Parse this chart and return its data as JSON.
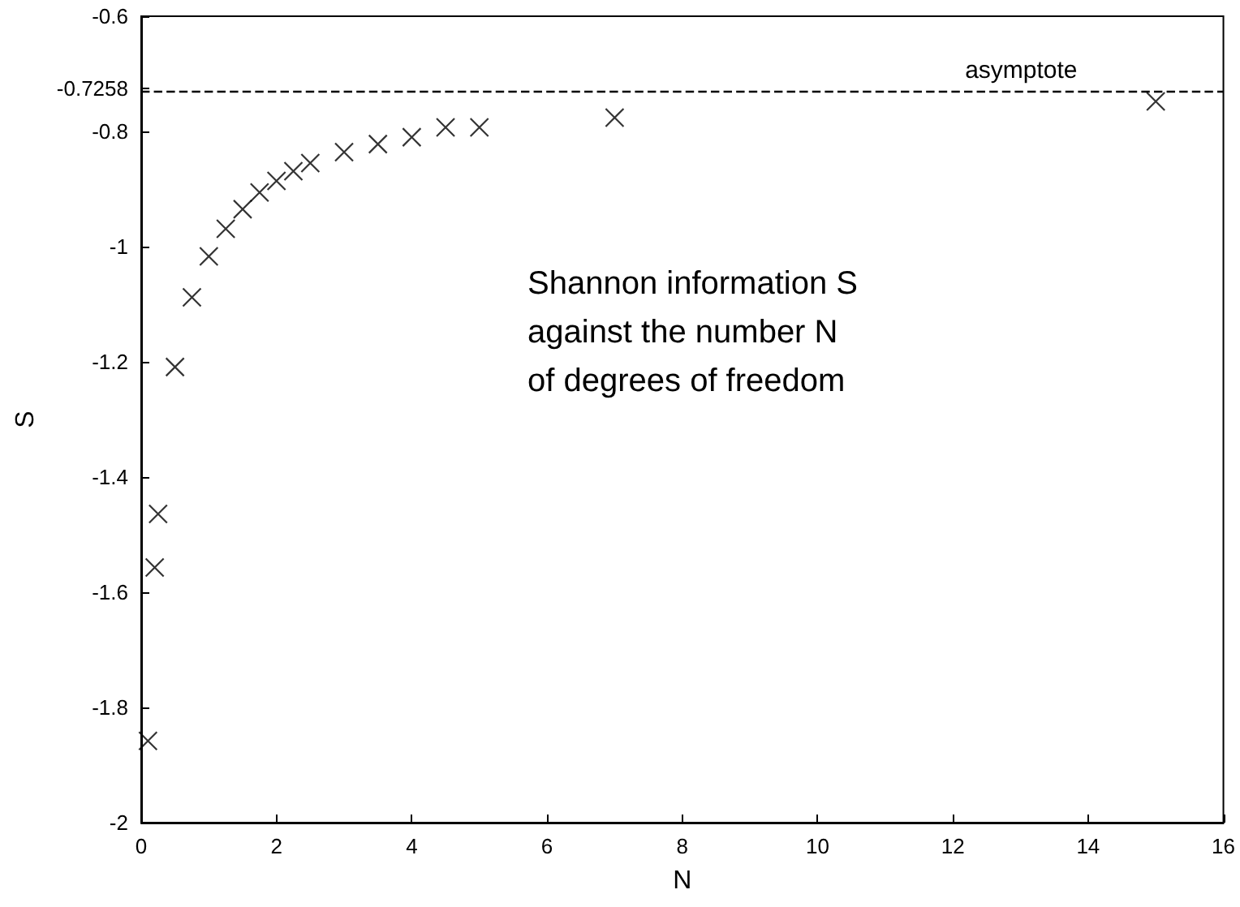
{
  "chart_data": {
    "type": "scatter",
    "xlabel": "N",
    "ylabel": "S",
    "x": [
      0.1,
      0.2,
      0.25,
      0.5,
      0.75,
      1,
      1.25,
      1.5,
      1.75,
      2,
      2.25,
      2.5,
      3,
      3.5,
      4,
      4.5,
      5,
      7,
      15
    ],
    "series": [
      {
        "color": "#000000",
        "values": [
          -1.858,
          -1.557,
          -1.464,
          -1.209,
          -1.088,
          -1.017,
          -0.969,
          -0.935,
          -0.906,
          -0.886,
          -0.869,
          -0.855,
          -0.836,
          -0.822,
          -0.81,
          -0.793,
          -0.793,
          -0.776,
          -0.748
        ]
      }
    ],
    "xlim": [
      0,
      16
    ],
    "xticks": [
      0,
      2,
      4,
      6,
      8,
      10,
      12,
      14,
      16
    ],
    "ylim": [
      -2,
      -0.6
    ],
    "yticks": [
      -2,
      -1.8,
      -1.6,
      -1.4,
      -1.2,
      -1,
      -0.8,
      -0.7258,
      -0.6
    ],
    "ref_lines": [
      {
        "axis": "y",
        "value": -0.7258,
        "label": "asymptote",
        "color": "#000000",
        "line_style": "dashed"
      }
    ],
    "annotations": [
      "Shannon information S\nagainst the number N\nof degrees of freedom"
    ],
    "marker": "cross",
    "grid": false
  }
}
